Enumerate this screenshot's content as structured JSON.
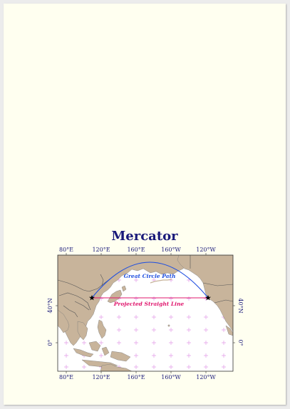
{
  "map": {
    "title": "Mercator",
    "top_ticks": [
      "80°E",
      "120°E",
      "160°E",
      "160°W",
      "120°W"
    ],
    "bottom_ticks": [
      "80°E",
      "120°E",
      "160°E",
      "160°W",
      "120°W"
    ],
    "left_ticks": [
      "40°N",
      "0°"
    ],
    "right_ticks": [
      "40°N",
      "0°"
    ],
    "great_circle_label": "Great Circle Path",
    "straight_line_label": "Projected Straight Line",
    "colors": {
      "ocean": "#ffffff",
      "land": "#c8b49b",
      "borders": "#555555",
      "great_circle": "#1f4fe0",
      "straight_line": "#e0186e",
      "graticule": "#e39be8",
      "title": "#1a1a7a"
    },
    "markers": [
      "star-marker-origin",
      "star-marker-destination"
    ]
  }
}
